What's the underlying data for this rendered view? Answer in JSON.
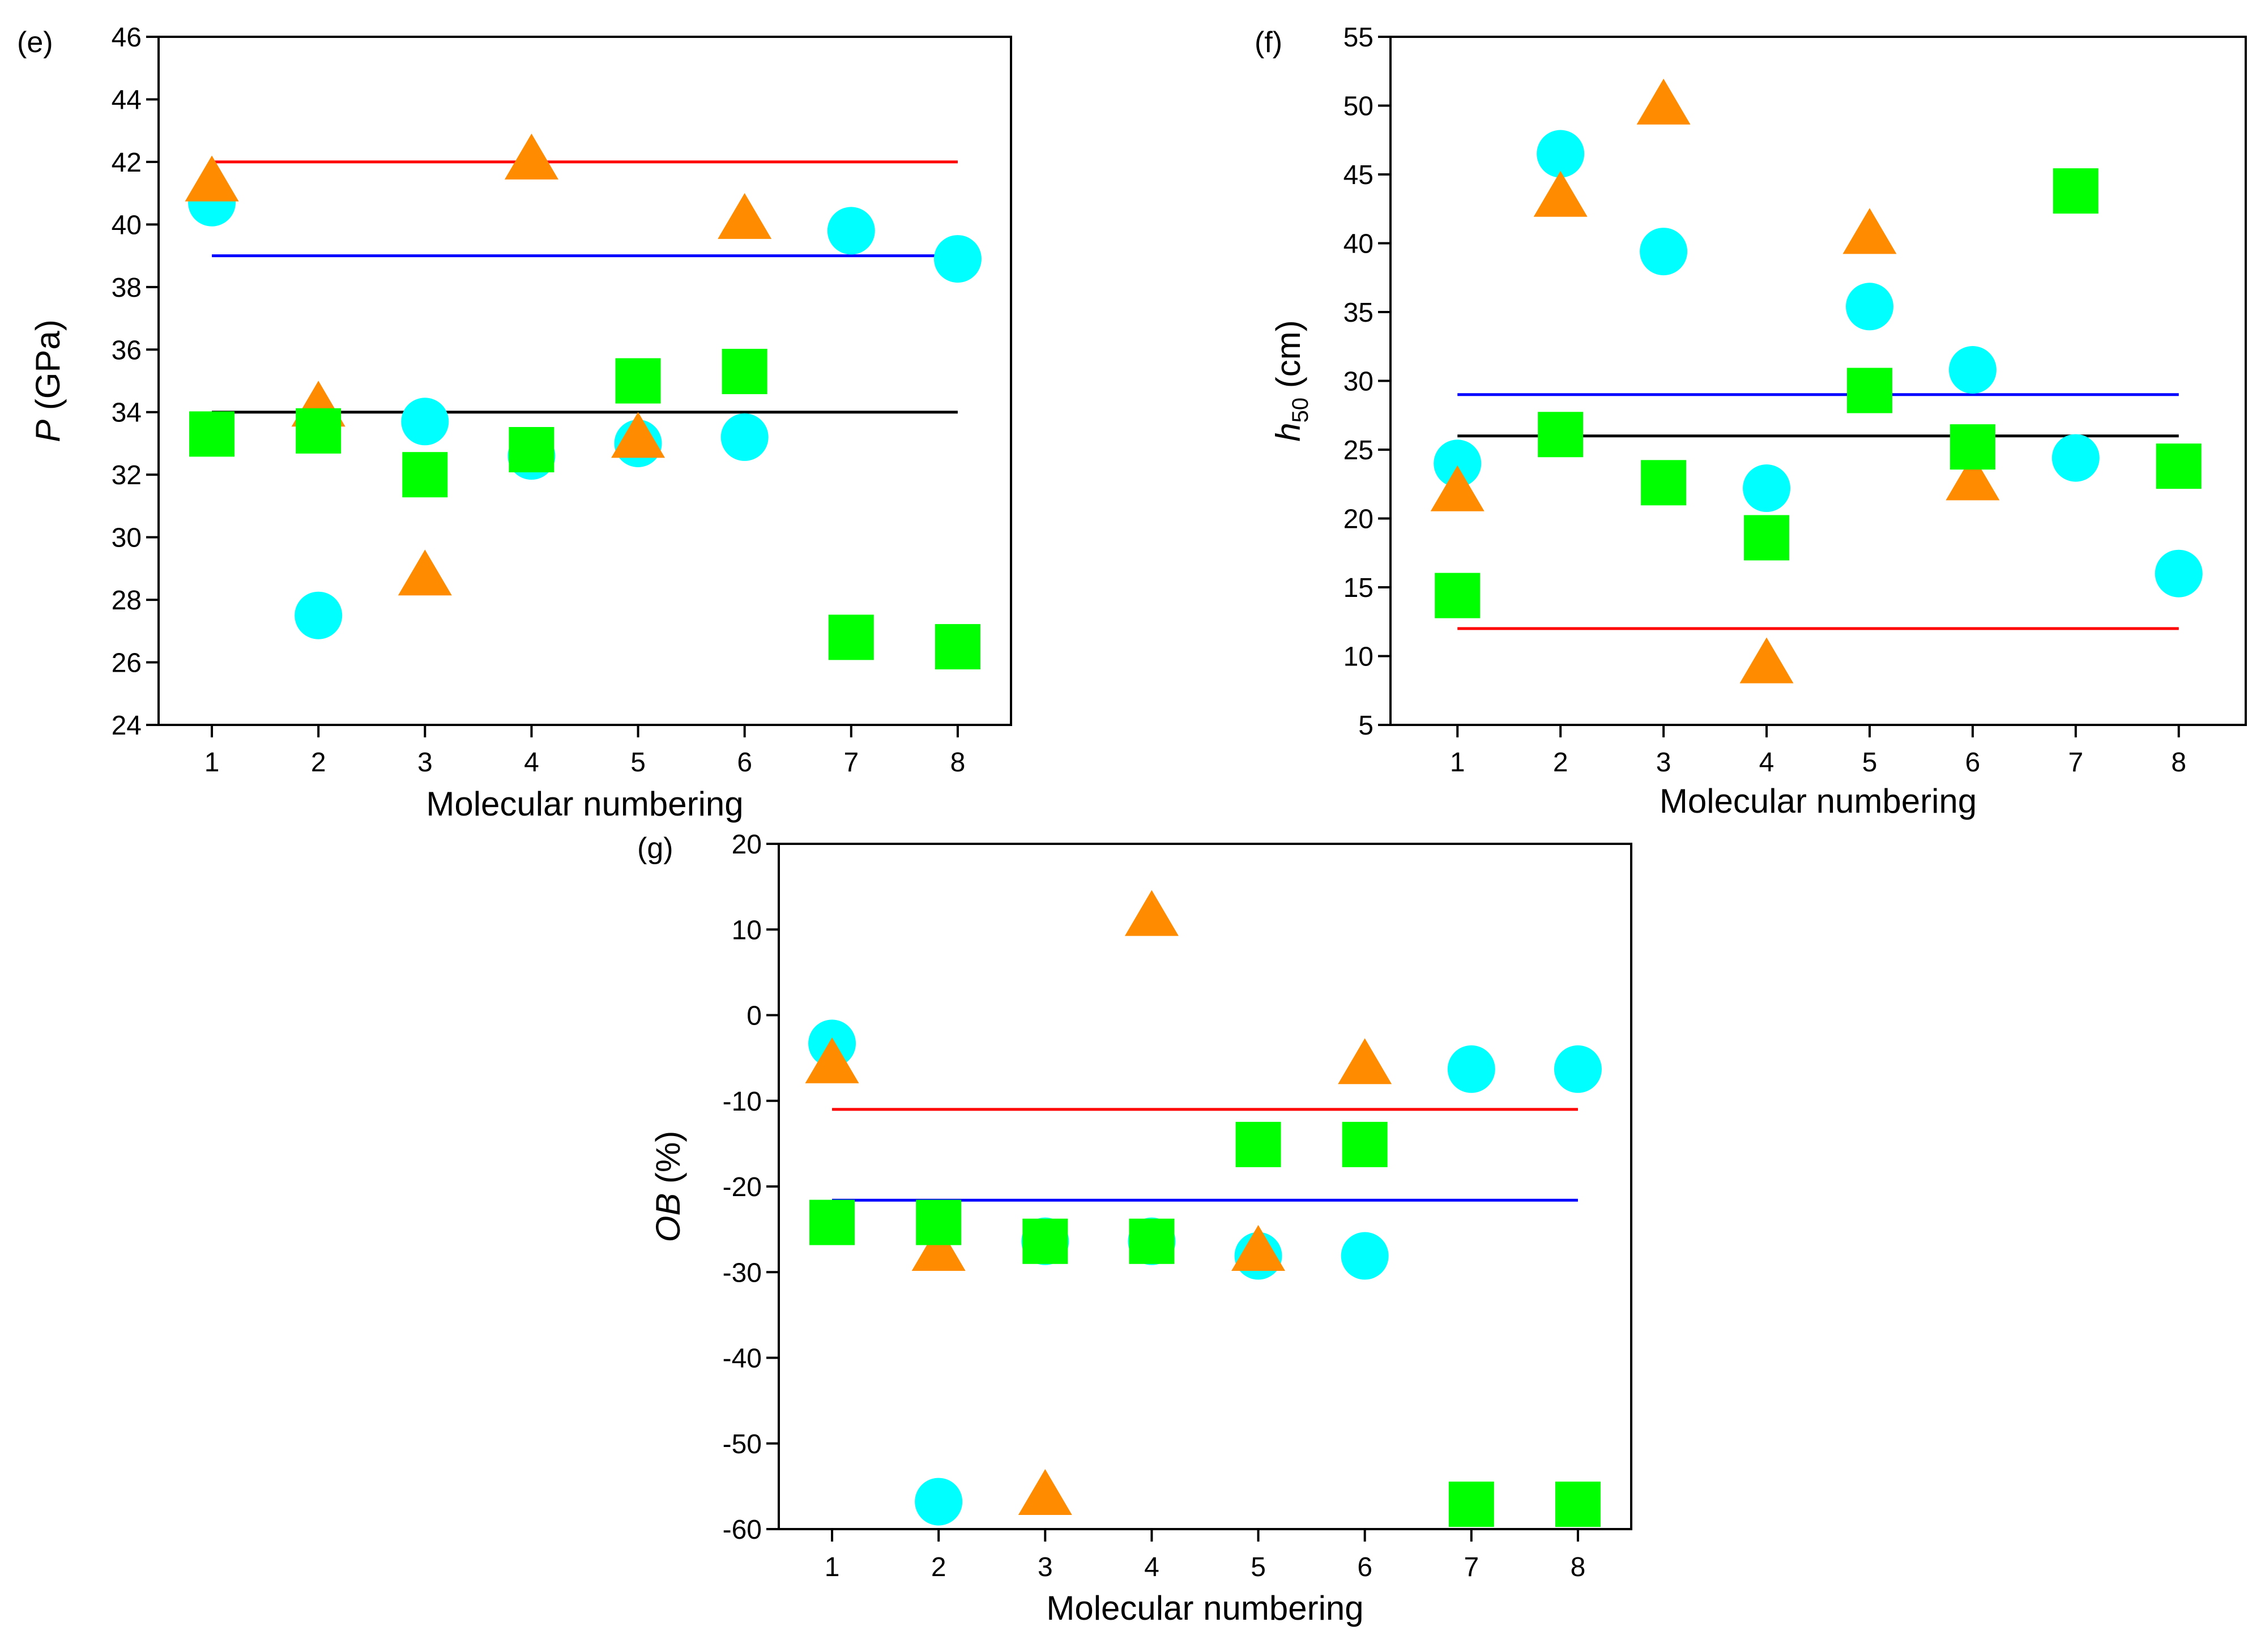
{
  "colors": {
    "circle": "#00FFFF",
    "triangle": "#FF8C00",
    "square": "#00FF00",
    "red_line": "#FF0000",
    "blue_line": "#0000FF",
    "black_line": "#000000"
  },
  "chart_data": [
    {
      "panel": "(e)",
      "type": "scatter",
      "xlabel": "Molecular numbering",
      "ylabel_italic": "P",
      "ylabel_rest": " (GPa)",
      "xlim": [
        0.5,
        8.5
      ],
      "ylim": [
        24,
        46
      ],
      "xticks": [
        1,
        2,
        3,
        4,
        5,
        6,
        7,
        8
      ],
      "yticks": [
        24,
        26,
        28,
        30,
        32,
        34,
        36,
        38,
        40,
        42,
        44,
        46
      ],
      "series": [
        {
          "name": "circles",
          "marker": "circle",
          "x": [
            1,
            2,
            3,
            4,
            5,
            6,
            7,
            8
          ],
          "y": [
            40.7,
            27.5,
            33.7,
            32.6,
            33.0,
            33.2,
            39.8,
            38.9
          ]
        },
        {
          "name": "triangles",
          "marker": "triangle",
          "x": [
            1,
            2,
            3,
            4,
            5,
            6
          ],
          "y": [
            41.3,
            34.1,
            28.7,
            42.0,
            33.1,
            40.1
          ]
        },
        {
          "name": "squares",
          "marker": "square",
          "x": [
            1,
            2,
            3,
            4,
            5,
            6,
            7,
            8
          ],
          "y": [
            33.3,
            33.4,
            32.0,
            32.8,
            35.0,
            35.3,
            26.8,
            26.5
          ]
        }
      ],
      "hlines": [
        {
          "name": "red",
          "y": 42.0,
          "x": [
            1,
            8
          ]
        },
        {
          "name": "blue",
          "y": 39.0,
          "x": [
            1,
            8
          ]
        },
        {
          "name": "black",
          "y": 34.0,
          "x": [
            1,
            8
          ]
        }
      ]
    },
    {
      "panel": "(f)",
      "type": "scatter",
      "xlabel": "Molecular numbering",
      "ylabel_italic": "h",
      "ylabel_sub": "50",
      "ylabel_rest": " (cm)",
      "xlim": [
        0.35,
        8.65
      ],
      "ylim": [
        5,
        55
      ],
      "xticks": [
        1,
        2,
        3,
        4,
        5,
        6,
        7,
        8
      ],
      "yticks": [
        5,
        10,
        15,
        20,
        25,
        30,
        35,
        40,
        45,
        50,
        55
      ],
      "series": [
        {
          "name": "circles",
          "marker": "circle",
          "x": [
            1,
            2,
            3,
            4,
            5,
            6,
            7,
            8
          ],
          "y": [
            24.0,
            46.5,
            39.4,
            22.2,
            35.4,
            30.8,
            24.4,
            16.0
          ]
        },
        {
          "name": "triangles",
          "marker": "triangle",
          "x": [
            1,
            2,
            3,
            4,
            5,
            6
          ],
          "y": [
            21.8,
            43.2,
            49.9,
            9.3,
            40.5,
            22.6
          ]
        },
        {
          "name": "squares",
          "marker": "square",
          "x": [
            1,
            2,
            3,
            4,
            5,
            6,
            7,
            8
          ],
          "y": [
            14.4,
            26.1,
            22.6,
            18.6,
            29.3,
            25.2,
            43.8,
            23.8
          ]
        }
      ],
      "hlines": [
        {
          "name": "blue",
          "y": 29.0,
          "x": [
            1,
            8
          ]
        },
        {
          "name": "black",
          "y": 26.0,
          "x": [
            1,
            8
          ]
        },
        {
          "name": "red",
          "y": 12.0,
          "x": [
            1,
            8
          ]
        }
      ]
    },
    {
      "panel": "(g)",
      "type": "scatter",
      "xlabel": "Molecular numbering",
      "ylabel_italic": "OB",
      "ylabel_rest": " (%)",
      "xlim": [
        0.5,
        8.5
      ],
      "ylim": [
        -60,
        20
      ],
      "xticks": [
        1,
        2,
        3,
        4,
        5,
        6,
        7,
        8
      ],
      "yticks": [
        -60,
        -50,
        -40,
        -30,
        -20,
        -10,
        0,
        10,
        20
      ],
      "series": [
        {
          "name": "circles",
          "marker": "circle",
          "x": [
            1,
            2,
            3,
            4,
            5,
            6,
            7,
            8
          ],
          "y": [
            -3.3,
            -56.8,
            -26.4,
            -26.4,
            -28.1,
            -28.1,
            -6.3,
            -6.3
          ]
        },
        {
          "name": "triangles",
          "marker": "triangle",
          "x": [
            1,
            2,
            3,
            4,
            5,
            6
          ],
          "y": [
            -5.9,
            -27.8,
            -56.3,
            11.3,
            -27.8,
            -6.0
          ]
        },
        {
          "name": "squares",
          "marker": "square",
          "x": [
            1,
            2,
            3,
            4,
            5,
            6,
            7,
            8
          ],
          "y": [
            -24.2,
            -24.2,
            -26.4,
            -26.4,
            -15.1,
            -15.1,
            -57.1,
            -57.1
          ]
        }
      ],
      "hlines": [
        {
          "name": "red",
          "y": -11.0,
          "x": [
            1,
            8
          ]
        },
        {
          "name": "blue",
          "y": -21.6,
          "x": [
            1,
            8
          ]
        }
      ]
    }
  ]
}
